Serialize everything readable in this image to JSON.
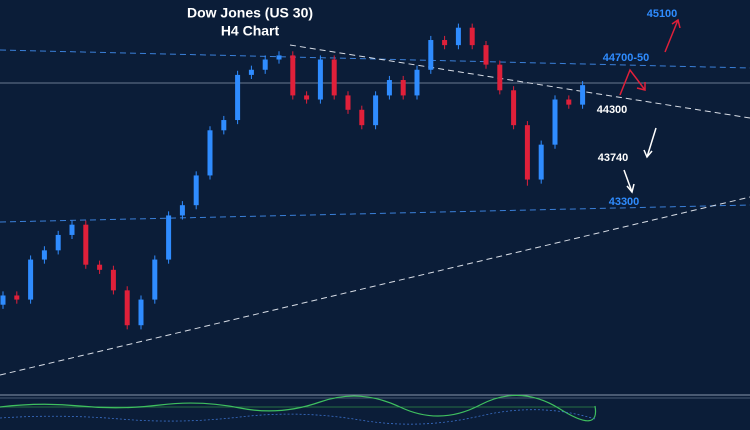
{
  "chart_data": {
    "type": "candlestick",
    "title": "Dow Jones (US 30)",
    "subtitle": "H4 Chart",
    "ylim": [
      41500,
      45350
    ],
    "up_color": "#2f8cff",
    "down_color": "#e0203a",
    "open": [
      42380,
      42470,
      42430,
      42820,
      42910,
      43060,
      43160,
      42770,
      42720,
      42520,
      42180,
      42430,
      42820,
      43250,
      43350,
      43640,
      44080,
      44180,
      44620,
      44670,
      44770,
      44810,
      44420,
      44380,
      44770,
      44420,
      44280,
      44130,
      44420,
      44570,
      44420,
      44670,
      44960,
      44910,
      45080,
      44910,
      44720,
      44470,
      44130,
      43600,
      43940,
      44380,
      44330
    ],
    "high": [
      42510,
      42510,
      42860,
      42950,
      43100,
      43200,
      43200,
      42810,
      42760,
      42560,
      42470,
      42860,
      43290,
      43390,
      43680,
      44120,
      44220,
      44660,
      44710,
      44810,
      44850,
      44850,
      44460,
      44810,
      44810,
      44460,
      44320,
      44460,
      44610,
      44610,
      44710,
      45000,
      45000,
      45120,
      45120,
      44950,
      44760,
      44510,
      44170,
      43980,
      44420,
      44420,
      44560
    ],
    "low": [
      42340,
      42390,
      42390,
      42780,
      42870,
      43020,
      42730,
      42680,
      42480,
      42140,
      42140,
      42390,
      42780,
      43210,
      43310,
      43600,
      44040,
      44140,
      44580,
      44630,
      44730,
      44380,
      44340,
      44340,
      44380,
      44240,
      44090,
      44090,
      44380,
      44380,
      44380,
      44630,
      44870,
      44870,
      44870,
      44680,
      44430,
      44090,
      43540,
      43560,
      43900,
      44290,
      44290
    ],
    "close": [
      42470,
      42430,
      42820,
      42910,
      43060,
      43160,
      42770,
      42720,
      42520,
      42180,
      42430,
      42820,
      43250,
      43350,
      43640,
      44080,
      44180,
      44620,
      44670,
      44770,
      44810,
      44420,
      44380,
      44770,
      44420,
      44280,
      44130,
      44420,
      44570,
      44420,
      44670,
      44960,
      44910,
      45080,
      44910,
      44720,
      44470,
      44130,
      43600,
      43940,
      44380,
      44330,
      44520
    ],
    "annotations": [
      {
        "text": "45100",
        "color": "#2f8cff"
      },
      {
        "text": "44700-50",
        "color": "#2f8cff"
      },
      {
        "text": "44300",
        "color": "#ffffff"
      },
      {
        "text": "43740",
        "color": "#ffffff"
      },
      {
        "text": "43300",
        "color": "#2f8cff"
      }
    ]
  }
}
